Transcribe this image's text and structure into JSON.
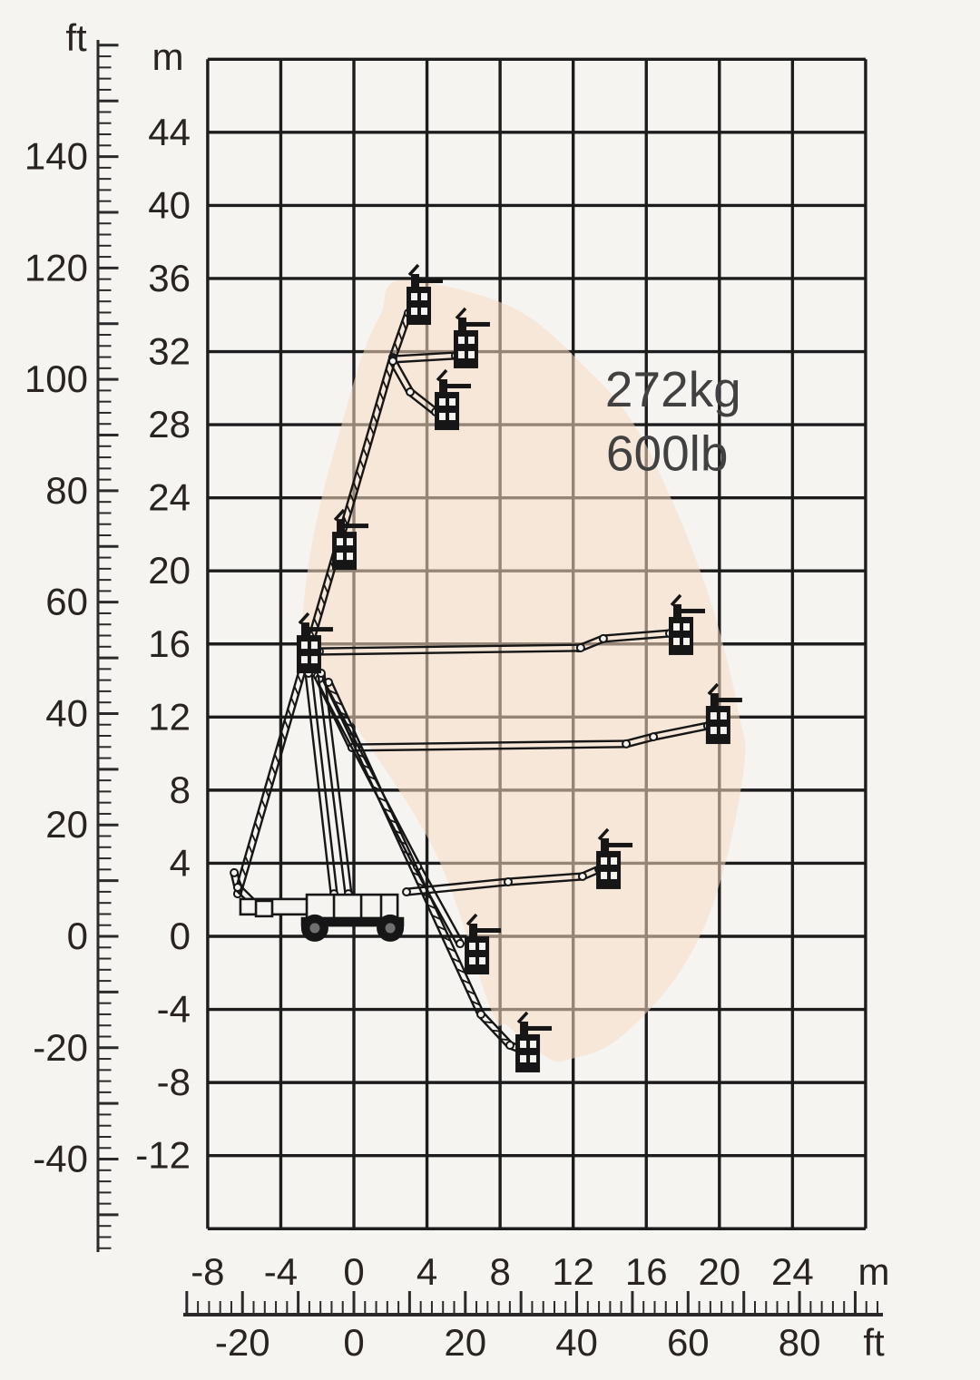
{
  "diagram": {
    "description": "Articulated boom lift working envelope reach diagram",
    "capacity": {
      "kg_label": "272kg",
      "lb_label": "600lb"
    },
    "unit_labels": {
      "left_outer": "ft",
      "left_inner": "m",
      "bottom_inner": "m",
      "bottom_outer": "ft"
    }
  },
  "colors": {
    "background": "#f5f4f1",
    "gridline": "#1c1c1c",
    "envelope_fill": "#f7ddc2",
    "envelope_opacity": 0.55,
    "machine": "#161616",
    "axis_text": "#2a2420",
    "capacity_text": "#414141",
    "ruler": "#2a2a2a"
  },
  "chart_data": {
    "type": "area",
    "title": "",
    "x_axis_m": {
      "unit": "m",
      "ticks": [
        -8,
        -4,
        0,
        4,
        8,
        12,
        16,
        20,
        24
      ],
      "range": [
        -8,
        28
      ],
      "grid_step_m": 4
    },
    "y_axis_m": {
      "unit": "m",
      "ticks": [
        44,
        40,
        36,
        32,
        28,
        24,
        20,
        16,
        12,
        8,
        4,
        0,
        -4,
        -8,
        -12
      ],
      "range": [
        -16,
        48
      ],
      "grid_step_m": 4
    },
    "x_axis_ft": {
      "unit": "ft",
      "labels": [
        -20,
        0,
        20,
        40,
        60,
        80
      ],
      "minor_step_ft": 2,
      "major_step_ft": 10,
      "range_ft": [
        -30,
        94
      ]
    },
    "y_axis_ft": {
      "unit": "ft",
      "labels": [
        140,
        120,
        100,
        80,
        60,
        40,
        20,
        0,
        -20,
        -40
      ],
      "minor_step_ft": 2,
      "major_step_ft": 10,
      "range_ft": [
        -56,
        160
      ]
    },
    "capacity_annotations": [
      {
        "text": "272kg",
        "anchor_m": [
          13.75,
          29.0
        ]
      },
      {
        "text": "600lb",
        "anchor_m": [
          13.8,
          25.5
        ]
      }
    ],
    "envelope_m": [
      [
        2.6,
        35.9
      ],
      [
        8.7,
        34.4
      ],
      [
        12.9,
        30.9
      ],
      [
        15.4,
        27.9
      ],
      [
        17.6,
        23.4
      ],
      [
        19.3,
        19.0
      ],
      [
        20.4,
        15.2
      ],
      [
        21.1,
        12.0
      ],
      [
        21.4,
        9.8
      ],
      [
        20.6,
        5.1
      ],
      [
        19.4,
        1.1
      ],
      [
        17.8,
        -2.0
      ],
      [
        15.9,
        -4.3
      ],
      [
        13.9,
        -6.0
      ],
      [
        11.9,
        -6.7
      ],
      [
        10.7,
        -6.7
      ],
      [
        8.4,
        -4.9
      ],
      [
        7.5,
        -4.0
      ],
      [
        4.2,
        5.1
      ],
      [
        -2.2,
        14.8
      ],
      [
        -2.8,
        16.2
      ],
      [
        -2.6,
        19.5
      ],
      [
        -1.9,
        23.4
      ],
      [
        -0.7,
        27.9
      ],
      [
        0.5,
        31.9
      ],
      [
        1.5,
        34.1
      ]
    ],
    "platforms_m": [
      [
        2.88,
        35.55
      ],
      [
        5.46,
        33.17
      ],
      [
        4.42,
        29.79
      ],
      [
        -1.19,
        22.14
      ],
      [
        17.23,
        17.48
      ],
      [
        19.26,
        12.61
      ],
      [
        13.26,
        4.67
      ],
      [
        6.06,
        0.0
      ],
      [
        8.84,
        -5.36
      ],
      [
        -3.13,
        16.48
      ]
    ],
    "booms_m": [
      {
        "name": "main-telescopic-boom-raised",
        "lattice": true,
        "points": [
          [
            -6.36,
            2.33
          ],
          [
            2.13,
            31.68
          ],
          [
            2.98,
            34.11
          ]
        ]
      },
      {
        "name": "top-link-boom",
        "lattice": false,
        "points": [
          [
            2.13,
            31.58
          ],
          [
            5.56,
            31.78
          ]
        ]
      },
      {
        "name": "upper-jib-down",
        "lattice": false,
        "points": [
          [
            2.13,
            31.48
          ],
          [
            3.08,
            29.79
          ],
          [
            4.47,
            28.7
          ]
        ]
      },
      {
        "name": "horizontal-boom-16m",
        "lattice": false,
        "points": [
          [
            -1.89,
            15.59
          ],
          [
            12.41,
            15.79
          ],
          [
            13.65,
            16.29
          ],
          [
            17.28,
            16.58
          ]
        ]
      },
      {
        "name": "horizontal-boom-12m",
        "lattice": false,
        "points": [
          [
            -0.1,
            10.33
          ],
          [
            14.9,
            10.53
          ],
          [
            16.39,
            10.92
          ],
          [
            19.36,
            11.52
          ]
        ]
      },
      {
        "name": "turret-elbow-link",
        "lattice": false,
        "points": [
          [
            -1.99,
            14.25
          ],
          [
            -0.1,
            10.33
          ]
        ]
      },
      {
        "name": "horizontal-boom-4m",
        "lattice": false,
        "points": [
          [
            2.88,
            2.43
          ],
          [
            8.44,
            2.98
          ],
          [
            12.51,
            3.28
          ],
          [
            13.41,
            3.67
          ]
        ]
      },
      {
        "name": "lowered-boom-a",
        "lattice": false,
        "points": [
          [
            -1.89,
            14.1
          ],
          [
            3.48,
            3.82
          ],
          [
            5.81,
            -0.4
          ]
        ]
      },
      {
        "name": "lowered-boom-b",
        "lattice": true,
        "points": [
          [
            -1.39,
            13.9
          ],
          [
            6.95,
            -4.27
          ],
          [
            8.54,
            -5.96
          ],
          [
            9.33,
            -6.26
          ]
        ]
      },
      {
        "name": "stowed-boom-left",
        "lattice": false,
        "points": [
          [
            -2.23,
            1.69
          ],
          [
            -5.36,
            1.69
          ],
          [
            -6.36,
            2.68
          ],
          [
            -6.55,
            3.48
          ]
        ]
      },
      {
        "name": "riser-tower-a",
        "lattice": false,
        "points": [
          [
            -2.48,
            14.4
          ],
          [
            -1.09,
            2.33
          ]
        ]
      },
      {
        "name": "riser-tower-b",
        "lattice": false,
        "points": [
          [
            -1.79,
            14.4
          ],
          [
            -0.3,
            2.33
          ]
        ]
      }
    ],
    "chassis_m": {
      "deck": [
        -2.58,
        2.28,
        4.97,
        1.29
      ],
      "deck_dividers_x": [
        -1.09,
        0.4,
        1.49
      ],
      "axle": [
        -2.83,
        0.99,
        5.51,
        0.4
      ],
      "wheels": [
        [
          -2.14,
          0.45
        ],
        [
          1.99,
          0.45
        ]
      ],
      "left_box": [
        -5.36,
        1.94,
        0.89,
        0.84
      ],
      "left_boom_outline": [
        -6.21,
        2.04,
        3.97,
        0.84
      ]
    }
  }
}
